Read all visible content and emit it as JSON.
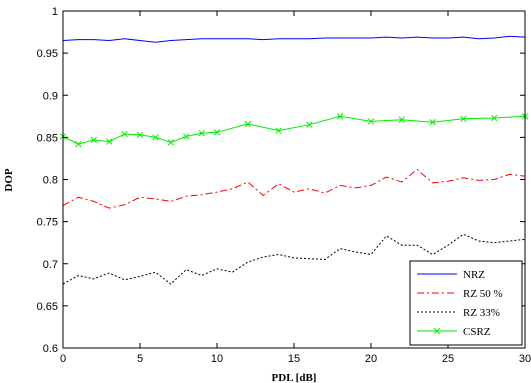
{
  "chart_data": {
    "type": "line",
    "xlabel": "PDL [dB]",
    "ylabel": "DOP",
    "xlim": [
      0,
      30
    ],
    "ylim": [
      0.6,
      1.0
    ],
    "xticks": [
      0,
      5,
      10,
      15,
      20,
      25,
      30
    ],
    "yticks": [
      0.6,
      0.65,
      0.7,
      0.75,
      0.8,
      0.85,
      0.9,
      0.95,
      1.0
    ],
    "ytick_labels": [
      "0.6",
      "0.65",
      "0.7",
      "0.75",
      "0.8",
      "0.85",
      "0.9",
      "0.95",
      "1"
    ],
    "grid": false,
    "legend_position": "bottom-right",
    "series": [
      {
        "name": "NRZ",
        "color": "#0000ff",
        "style": "solid",
        "marker": "none",
        "x": [
          0,
          1,
          2,
          3,
          4,
          5,
          6,
          7,
          8,
          9,
          10,
          11,
          12,
          13,
          14,
          15,
          16,
          17,
          18,
          19,
          20,
          21,
          22,
          23,
          24,
          25,
          26,
          27,
          28,
          29,
          30
        ],
        "y": [
          0.965,
          0.966,
          0.966,
          0.965,
          0.967,
          0.965,
          0.963,
          0.965,
          0.966,
          0.967,
          0.967,
          0.967,
          0.967,
          0.966,
          0.967,
          0.967,
          0.967,
          0.968,
          0.968,
          0.968,
          0.968,
          0.969,
          0.968,
          0.969,
          0.968,
          0.968,
          0.969,
          0.967,
          0.968,
          0.97,
          0.969
        ]
      },
      {
        "name": "RZ 50 %",
        "color": "#ff0000",
        "style": "dashdot",
        "marker": "none",
        "x": [
          0,
          1,
          2,
          3,
          4,
          5,
          6,
          7,
          8,
          9,
          10,
          11,
          12,
          13,
          14,
          15,
          16,
          17,
          18,
          19,
          20,
          21,
          22,
          23,
          24,
          25,
          26,
          27,
          28,
          29,
          30
        ],
        "y": [
          0.769,
          0.779,
          0.774,
          0.766,
          0.77,
          0.779,
          0.777,
          0.774,
          0.78,
          0.782,
          0.785,
          0.789,
          0.797,
          0.781,
          0.795,
          0.785,
          0.789,
          0.784,
          0.793,
          0.79,
          0.793,
          0.803,
          0.797,
          0.812,
          0.796,
          0.798,
          0.802,
          0.799,
          0.8,
          0.806,
          0.804
        ]
      },
      {
        "name": "RZ 33%",
        "color": "#000000",
        "style": "dotted",
        "marker": "none",
        "x": [
          0,
          1,
          2,
          3,
          4,
          5,
          6,
          7,
          8,
          9,
          10,
          11,
          12,
          13,
          14,
          15,
          16,
          17,
          18,
          19,
          20,
          21,
          22,
          23,
          24,
          25,
          26,
          27,
          28,
          29,
          30
        ],
        "y": [
          0.676,
          0.686,
          0.682,
          0.689,
          0.681,
          0.685,
          0.69,
          0.676,
          0.693,
          0.686,
          0.694,
          0.69,
          0.702,
          0.708,
          0.711,
          0.707,
          0.706,
          0.705,
          0.718,
          0.714,
          0.711,
          0.733,
          0.722,
          0.722,
          0.711,
          0.722,
          0.735,
          0.727,
          0.725,
          0.727,
          0.729
        ]
      },
      {
        "name": "CSRZ",
        "color": "#00ee00",
        "style": "solid",
        "marker": "x",
        "x": [
          0,
          1,
          2,
          3,
          4,
          5,
          6,
          7,
          8,
          9,
          10,
          12,
          14,
          16,
          18,
          20,
          22,
          24,
          26,
          28,
          30
        ],
        "y": [
          0.851,
          0.842,
          0.847,
          0.845,
          0.854,
          0.853,
          0.85,
          0.844,
          0.851,
          0.855,
          0.856,
          0.866,
          0.858,
          0.865,
          0.875,
          0.869,
          0.871,
          0.868,
          0.872,
          0.873,
          0.875
        ]
      }
    ]
  }
}
